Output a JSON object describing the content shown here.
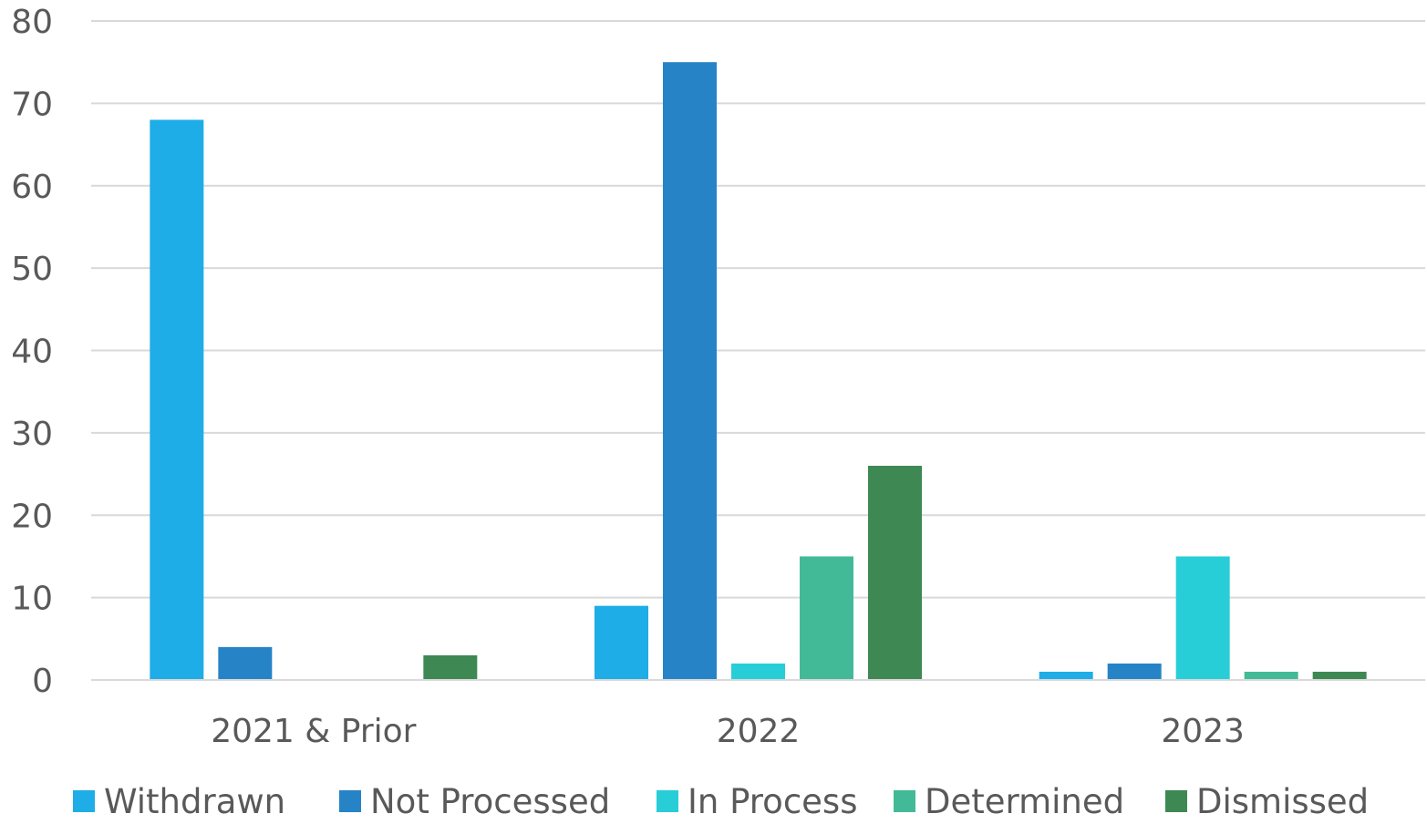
{
  "chart_data": {
    "type": "bar",
    "title": "",
    "xlabel": "",
    "ylabel": "",
    "categories": [
      "2021 & Prior",
      "2022",
      "2023"
    ],
    "ylim": [
      0,
      80
    ],
    "yticks": [
      0,
      10,
      20,
      30,
      40,
      50,
      60,
      70,
      80
    ],
    "grid": true,
    "legend": "bottom",
    "series": [
      {
        "name": "Withdrawn",
        "color": "#1EADE6",
        "values": [
          68,
          9,
          1
        ]
      },
      {
        "name": "Not Processed",
        "color": "#2683C6",
        "values": [
          4,
          75,
          2
        ]
      },
      {
        "name": "In Process",
        "color": "#27CED7",
        "values": [
          0,
          2,
          15
        ]
      },
      {
        "name": "Determined",
        "color": "#42BA97",
        "values": [
          0,
          15,
          1
        ]
      },
      {
        "name": "Dismissed",
        "color": "#3E8853",
        "values": [
          3,
          26,
          1
        ]
      }
    ]
  }
}
